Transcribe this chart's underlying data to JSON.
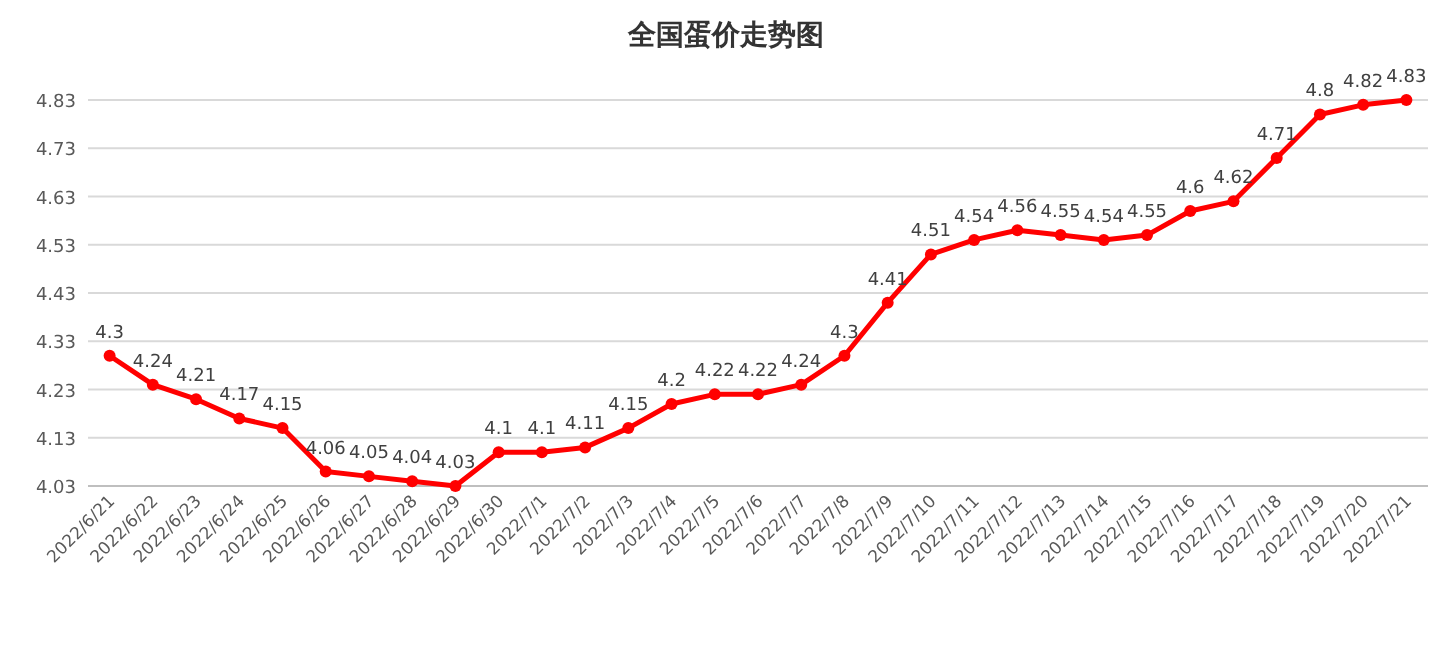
{
  "chart_data": {
    "type": "line",
    "title": "全国蛋价走势图",
    "categories": [
      "2022/6/21",
      "2022/6/22",
      "2022/6/23",
      "2022/6/24",
      "2022/6/25",
      "2022/6/26",
      "2022/6/27",
      "2022/6/28",
      "2022/6/29",
      "2022/6/30",
      "2022/7/1",
      "2022/7/2",
      "2022/7/3",
      "2022/7/4",
      "2022/7/5",
      "2022/7/6",
      "2022/7/7",
      "2022/7/8",
      "2022/7/9",
      "2022/7/10",
      "2022/7/11",
      "2022/7/12",
      "2022/7/13",
      "2022/7/14",
      "2022/7/15",
      "2022/7/16",
      "2022/7/17",
      "2022/7/18",
      "2022/7/19",
      "2022/7/20",
      "2022/7/21"
    ],
    "series": [
      {
        "color": "#ff0000",
        "values": [
          4.3,
          4.24,
          4.21,
          4.17,
          4.15,
          4.06,
          4.05,
          4.04,
          4.03,
          4.1,
          4.1,
          4.11,
          4.15,
          4.2,
          4.22,
          4.22,
          4.24,
          4.3,
          4.41,
          4.51,
          4.54,
          4.56,
          4.55,
          4.54,
          4.55,
          4.6,
          4.62,
          4.71,
          4.8,
          4.82,
          4.83
        ]
      }
    ],
    "ylim": [
      4.03,
      4.83
    ],
    "yticks": [
      4.03,
      4.13,
      4.23,
      4.33,
      4.43,
      4.53,
      4.63,
      4.73,
      4.83
    ],
    "grid": "y",
    "data_labels": true,
    "marker": "circle",
    "line_style": "solid"
  }
}
